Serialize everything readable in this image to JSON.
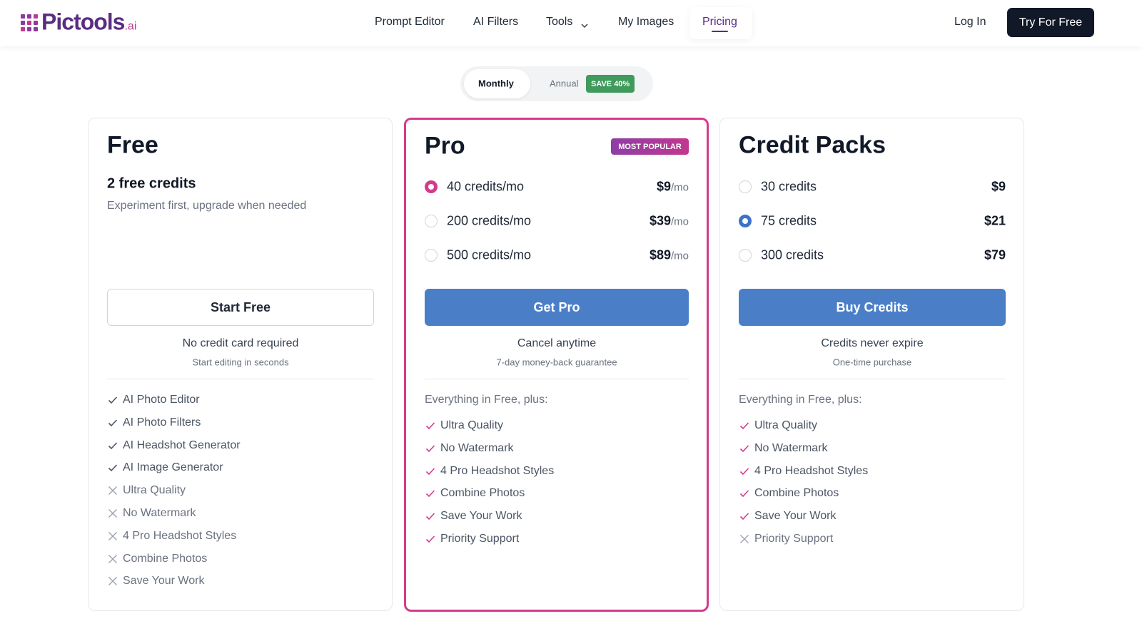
{
  "header": {
    "logo": "Pictools",
    "logo_suffix": ".ai",
    "nav": [
      {
        "label": "Prompt Editor",
        "active": false
      },
      {
        "label": "AI Filters",
        "active": false
      },
      {
        "label": "Tools",
        "active": false,
        "dropdown": true
      },
      {
        "label": "My Images",
        "active": false
      },
      {
        "label": "Pricing",
        "active": true
      }
    ],
    "login": "Log In",
    "cta": "Try For Free"
  },
  "billing_toggle": {
    "options": [
      {
        "label": "Monthly",
        "selected": true
      },
      {
        "label": "Annual",
        "selected": false
      }
    ],
    "badge": "SAVE 40%"
  },
  "plans": [
    {
      "name": "Free",
      "subtitle": "2 free credits",
      "description": "Experiment first, upgrade when needed",
      "button": "Start Free",
      "note": "No credit card required",
      "subnote": "Start editing in seconds",
      "features": [
        {
          "label": "AI Photo Editor",
          "included": true
        },
        {
          "label": "AI Photo Filters",
          "included": true
        },
        {
          "label": "AI Headshot Generator",
          "included": true
        },
        {
          "label": "AI Image Generator",
          "included": true
        },
        {
          "label": "Ultra Quality",
          "included": false
        },
        {
          "label": "No Watermark",
          "included": false
        },
        {
          "label": "4 Pro Headshot Styles",
          "included": false
        },
        {
          "label": "Combine Photos",
          "included": false
        },
        {
          "label": "Save Your Work",
          "included": false
        }
      ]
    },
    {
      "name": "Pro",
      "badge": "MOST POPULAR",
      "options": [
        {
          "label": "40 credits/mo",
          "price": "$9",
          "unit": "/mo",
          "selected": true
        },
        {
          "label": "200 credits/mo",
          "price": "$39",
          "unit": "/mo",
          "selected": false
        },
        {
          "label": "500 credits/mo",
          "price": "$89",
          "unit": "/mo",
          "selected": false
        }
      ],
      "button": "Get Pro",
      "note": "Cancel anytime",
      "subnote": "7-day money-back guarantee",
      "features_heading": "Everything in Free, plus:",
      "features": [
        {
          "label": "Ultra Quality",
          "included": true
        },
        {
          "label": "No Watermark",
          "included": true
        },
        {
          "label": "4 Pro Headshot Styles",
          "included": true
        },
        {
          "label": "Combine Photos",
          "included": true
        },
        {
          "label": "Save Your Work",
          "included": true
        },
        {
          "label": "Priority Support",
          "included": true
        }
      ]
    },
    {
      "name": "Credit Packs",
      "options": [
        {
          "label": "30 credits",
          "price": "$9",
          "selected": false
        },
        {
          "label": "75 credits",
          "price": "$21",
          "selected": true
        },
        {
          "label": "300 credits",
          "price": "$79",
          "selected": false
        }
      ],
      "button": "Buy Credits",
      "note": "Credits never expire",
      "subnote": "One-time purchase",
      "features_heading": "Everything in Free, plus:",
      "features": [
        {
          "label": "Ultra Quality",
          "included": true
        },
        {
          "label": "No Watermark",
          "included": true
        },
        {
          "label": "4 Pro Headshot Styles",
          "included": true
        },
        {
          "label": "Combine Photos",
          "included": true
        },
        {
          "label": "Save Your Work",
          "included": true
        },
        {
          "label": "Priority Support",
          "included": false
        }
      ]
    }
  ]
}
